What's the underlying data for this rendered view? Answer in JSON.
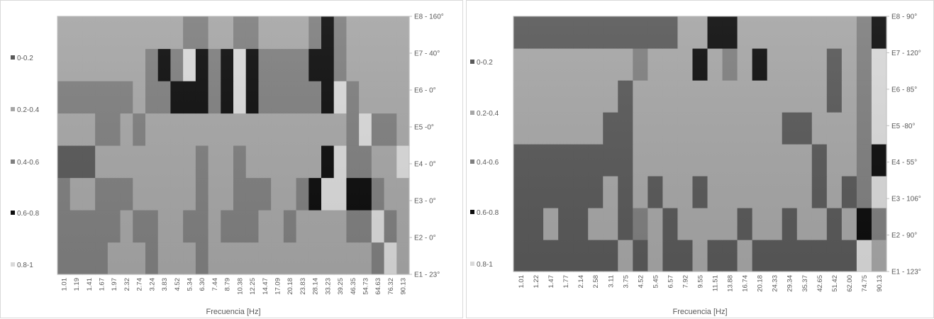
{
  "legend": [
    {
      "label": "0-0.2",
      "color": "#595959"
    },
    {
      "label": "0.2-0.4",
      "color": "#a6a6a6"
    },
    {
      "label": "0.4-0.6",
      "color": "#7f7f7f"
    },
    {
      "label": "0.6-0.8",
      "color": "#0d0d0d"
    },
    {
      "label": "0.8-1",
      "color": "#d9d9d9"
    }
  ],
  "chart_data": [
    {
      "type": "heatmap",
      "xlabel": "Frecuencia [Hz]",
      "x_ticks": [
        "1.01",
        "1.19",
        "1.41",
        "1.67",
        "1.97",
        "2.32",
        "2.74",
        "3.24",
        "3.83",
        "4.52",
        "5.34",
        "6.30",
        "7.44",
        "8.79",
        "10.38",
        "12.25",
        "14.47",
        "17.09",
        "20.18",
        "23.83",
        "28.14",
        "33.23",
        "39.25",
        "46.35",
        "54.73",
        "64.63",
        "76.32",
        "90.13"
      ],
      "y_categories": [
        "E1 - 23°",
        "E2 - 0°",
        "E3 - 0°",
        "E4 - 0°",
        "E5 -0°",
        "E6 - 0°",
        "E7 - 40°",
        "E8 - 160°"
      ],
      "value_range": [
        0,
        1
      ],
      "legend_bins": [
        "0-0.2",
        "0.2-0.4",
        "0.4-0.6",
        "0.6-0.8",
        "0.8-1"
      ],
      "values": [
        [
          0.5,
          0.5,
          0.4,
          0.4,
          0.3,
          0.3,
          0.3,
          0.4,
          0.3,
          0.3,
          0.3,
          0.5,
          0.3,
          0.3,
          0.3,
          0.3,
          0.3,
          0.3,
          0.3,
          0.3,
          0.3,
          0.3,
          0.3,
          0.3,
          0.3,
          0.5,
          0.9,
          0.3
        ],
        [
          0.5,
          0.4,
          0.4,
          0.5,
          0.5,
          0.3,
          0.5,
          0.5,
          0.3,
          0.3,
          0.5,
          0.5,
          0.3,
          0.5,
          0.5,
          0.5,
          0.3,
          0.3,
          0.5,
          0.3,
          0.3,
          0.3,
          0.3,
          0.5,
          0.5,
          0.9,
          0.5,
          0.3
        ],
        [
          0.5,
          0.3,
          0.3,
          0.5,
          0.5,
          0.5,
          0.3,
          0.3,
          0.3,
          0.3,
          0.3,
          0.5,
          0.3,
          0.3,
          0.5,
          0.5,
          0.5,
          0.3,
          0.3,
          0.5,
          0.7,
          0.9,
          0.9,
          0.7,
          0.7,
          0.5,
          0.3,
          0.3
        ],
        [
          0.1,
          0.1,
          0.1,
          0.3,
          0.3,
          0.3,
          0.3,
          0.3,
          0.3,
          0.3,
          0.3,
          0.5,
          0.3,
          0.3,
          0.5,
          0.3,
          0.3,
          0.3,
          0.3,
          0.3,
          0.3,
          0.7,
          0.9,
          0.5,
          0.5,
          0.3,
          0.3,
          0.9
        ],
        [
          0.3,
          0.3,
          0.3,
          0.5,
          0.5,
          0.3,
          0.5,
          0.3,
          0.3,
          0.3,
          0.3,
          0.3,
          0.3,
          0.3,
          0.3,
          0.3,
          0.3,
          0.3,
          0.3,
          0.3,
          0.3,
          0.3,
          0.3,
          0.5,
          0.9,
          0.5,
          0.5,
          0.3
        ],
        [
          0.5,
          0.5,
          0.5,
          0.5,
          0.5,
          0.5,
          0.3,
          0.5,
          0.5,
          0.7,
          0.7,
          0.7,
          0.5,
          0.7,
          0.9,
          0.7,
          0.5,
          0.5,
          0.5,
          0.5,
          0.5,
          0.7,
          0.9,
          0.5,
          0.3,
          0.3,
          0.3,
          0.3
        ],
        [
          0.3,
          0.3,
          0.3,
          0.3,
          0.3,
          0.3,
          0.3,
          0.5,
          0.7,
          0.5,
          0.9,
          0.7,
          0.5,
          0.7,
          0.9,
          0.7,
          0.5,
          0.5,
          0.5,
          0.5,
          0.7,
          0.7,
          0.5,
          0.3,
          0.3,
          0.3,
          0.3,
          0.3
        ],
        [
          0.3,
          0.3,
          0.3,
          0.3,
          0.3,
          0.3,
          0.3,
          0.3,
          0.3,
          0.3,
          0.5,
          0.5,
          0.3,
          0.3,
          0.5,
          0.5,
          0.3,
          0.3,
          0.3,
          0.3,
          0.5,
          0.7,
          0.5,
          0.3,
          0.3,
          0.3,
          0.3,
          0.3
        ]
      ]
    },
    {
      "type": "heatmap",
      "xlabel": "Frecuencia [Hz]",
      "x_ticks": [
        "1.01",
        "1.22",
        "1.47",
        "1.77",
        "2.14",
        "2.58",
        "3.11",
        "3.75",
        "4.52",
        "5.45",
        "6.57",
        "7.92",
        "9.55",
        "11.51",
        "13.88",
        "16.74",
        "20.18",
        "24.33",
        "29.34",
        "35.37",
        "42.65",
        "51.42",
        "62.00",
        "74.75",
        "90.13"
      ],
      "y_categories": [
        "E1 - 123°",
        "E2 - 90°",
        "E3 - 106°",
        "E4 - 55°",
        "E5 -80°",
        "E6 - 85°",
        "E7 - 120°",
        "E8 - 90°"
      ],
      "value_range": [
        0,
        1
      ],
      "legend_bins": [
        "0-0.2",
        "0.2-0.4",
        "0.4-0.6",
        "0.6-0.8",
        "0.8-1"
      ],
      "values": [
        [
          0.1,
          0.1,
          0.1,
          0.1,
          0.1,
          0.1,
          0.1,
          0.3,
          0.1,
          0.3,
          0.1,
          0.1,
          0.3,
          0.1,
          0.1,
          0.3,
          0.1,
          0.1,
          0.1,
          0.1,
          0.1,
          0.1,
          0.1,
          0.9,
          0.3
        ],
        [
          0.1,
          0.1,
          0.3,
          0.1,
          0.1,
          0.3,
          0.3,
          0.1,
          0.5,
          0.3,
          0.1,
          0.3,
          0.3,
          0.3,
          0.3,
          0.1,
          0.3,
          0.3,
          0.1,
          0.3,
          0.3,
          0.1,
          0.3,
          0.7,
          0.5
        ],
        [
          0.1,
          0.1,
          0.1,
          0.1,
          0.1,
          0.1,
          0.3,
          0.1,
          0.3,
          0.1,
          0.3,
          0.3,
          0.1,
          0.3,
          0.3,
          0.3,
          0.3,
          0.3,
          0.3,
          0.3,
          0.1,
          0.3,
          0.1,
          0.5,
          0.9
        ],
        [
          0.1,
          0.1,
          0.1,
          0.1,
          0.1,
          0.1,
          0.1,
          0.1,
          0.3,
          0.3,
          0.3,
          0.3,
          0.3,
          0.3,
          0.3,
          0.3,
          0.3,
          0.3,
          0.3,
          0.3,
          0.1,
          0.3,
          0.3,
          0.5,
          0.7
        ],
        [
          0.3,
          0.3,
          0.3,
          0.3,
          0.3,
          0.3,
          0.1,
          0.1,
          0.3,
          0.3,
          0.3,
          0.3,
          0.3,
          0.3,
          0.3,
          0.3,
          0.3,
          0.3,
          0.1,
          0.1,
          0.3,
          0.3,
          0.3,
          0.5,
          0.9
        ],
        [
          0.3,
          0.3,
          0.3,
          0.3,
          0.3,
          0.3,
          0.3,
          0.1,
          0.3,
          0.3,
          0.3,
          0.3,
          0.3,
          0.3,
          0.3,
          0.3,
          0.3,
          0.3,
          0.3,
          0.3,
          0.3,
          0.1,
          0.3,
          0.5,
          0.9
        ],
        [
          0.3,
          0.3,
          0.3,
          0.3,
          0.3,
          0.3,
          0.3,
          0.3,
          0.5,
          0.3,
          0.3,
          0.3,
          0.7,
          0.3,
          0.5,
          0.3,
          0.7,
          0.3,
          0.3,
          0.3,
          0.3,
          0.1,
          0.3,
          0.5,
          0.9
        ],
        [
          0.1,
          0.1,
          0.1,
          0.1,
          0.1,
          0.1,
          0.1,
          0.1,
          0.1,
          0.1,
          0.1,
          0.3,
          0.3,
          0.7,
          0.7,
          0.3,
          0.3,
          0.3,
          0.3,
          0.3,
          0.3,
          0.3,
          0.3,
          0.5,
          0.7
        ]
      ]
    }
  ]
}
